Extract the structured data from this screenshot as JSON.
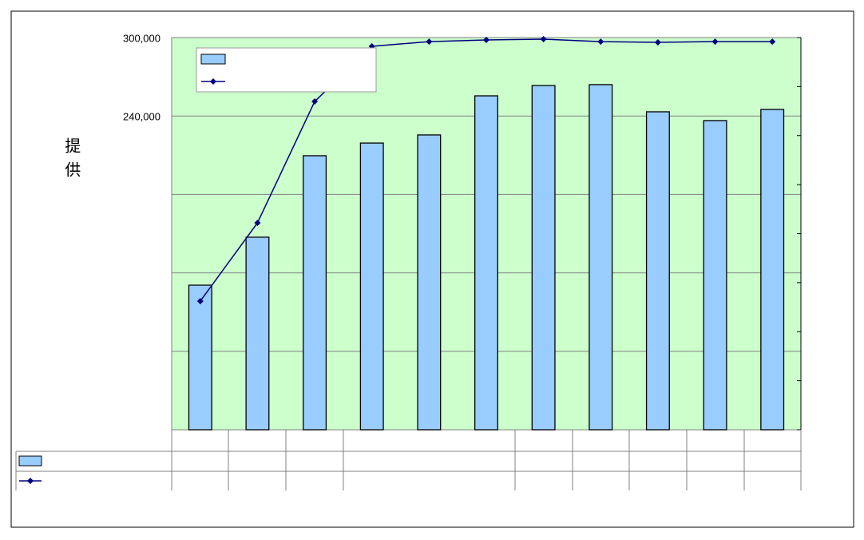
{
  "chart_data": {
    "type": "bar_line",
    "y_label": "提供",
    "categories": [
      null,
      null,
      null,
      null,
      null,
      null,
      null,
      null,
      null,
      null,
      null
    ],
    "series": [
      {
        "type": "bar",
        "color": "#99ccff",
        "values": [
          110600,
          147300,
          209600,
          219300,
          225500,
          255400,
          263300,
          264000,
          243200,
          236500,
          245000
        ]
      },
      {
        "type": "line",
        "color": "#000080",
        "values": [
          98400,
          158250,
          251100,
          293300,
          296900,
          298200,
          298800,
          296900,
          296300,
          296900,
          296900
        ]
      }
    ],
    "ylim": [
      0,
      300000
    ],
    "yticks": [
      {
        "value": 0,
        "label": null
      },
      {
        "value": 60000,
        "label": null
      },
      {
        "value": 120000,
        "label": null
      },
      {
        "value": 180000,
        "label": null
      },
      {
        "value": 240000,
        "label": "240,000"
      },
      {
        "value": 300000,
        "label": "300,000"
      }
    ],
    "grid": true,
    "plot_background": "#ccffcc",
    "legend": "upper left"
  }
}
